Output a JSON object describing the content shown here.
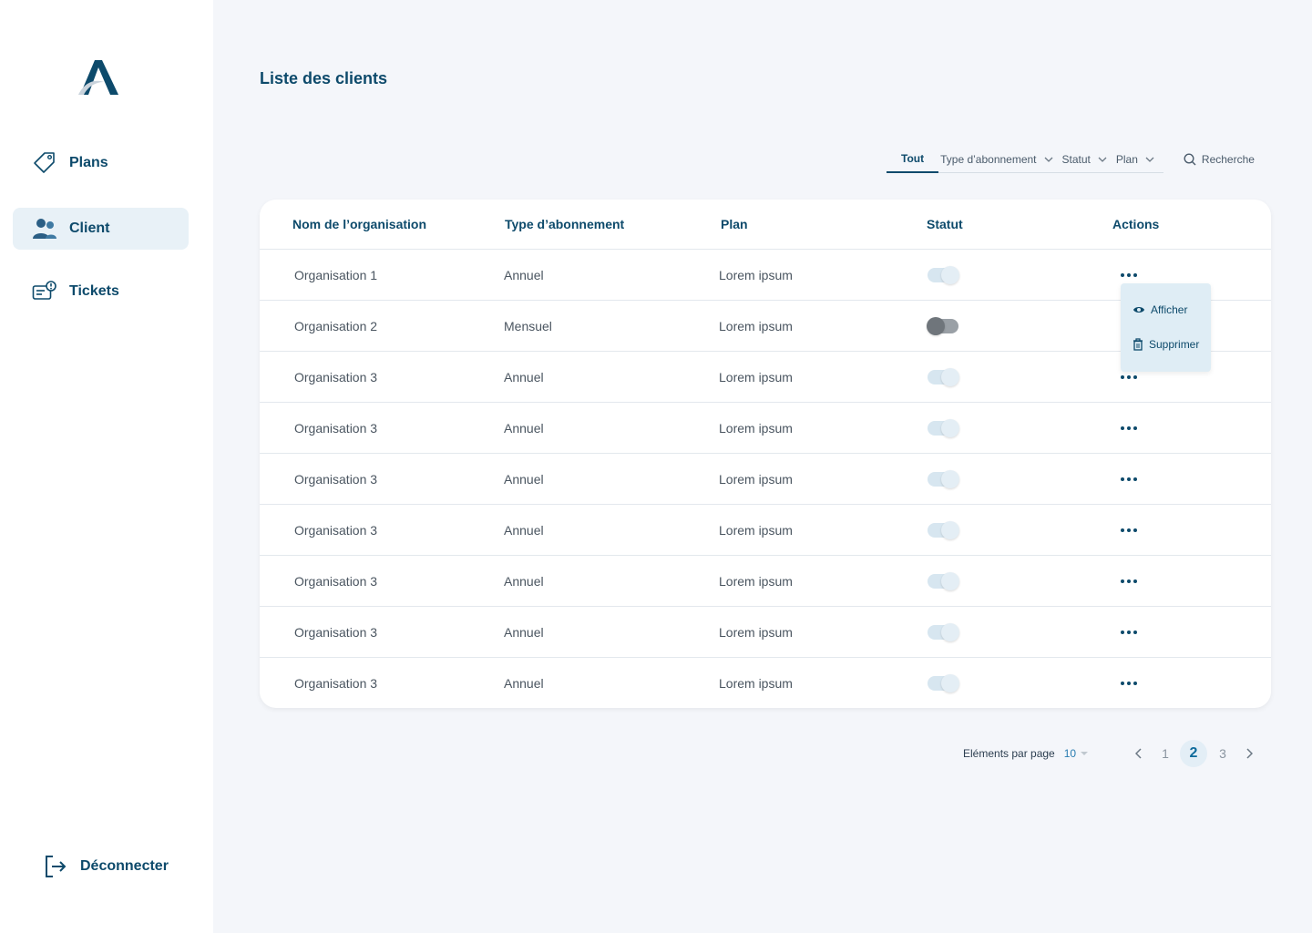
{
  "sidebar": {
    "items": [
      {
        "label": "Plans",
        "icon": "tag-icon"
      },
      {
        "label": "Client",
        "icon": "users-icon",
        "active": true
      },
      {
        "label": "Tickets",
        "icon": "ticket-icon"
      }
    ],
    "logout_label": "Déconnecter"
  },
  "page": {
    "title": "Liste des clients"
  },
  "filters": {
    "all_label": "Tout",
    "subscription_label": "Type d’abonnement",
    "status_label": "Statut",
    "plan_label": "Plan",
    "search_label": "Recherche"
  },
  "table": {
    "headers": [
      "Nom de l’organisation",
      "Type d’abonnement",
      "Plan",
      "Statut",
      "Actions"
    ],
    "rows": [
      {
        "name": "Organisation 1",
        "type": "Annuel",
        "plan": "Lorem ipsum",
        "status": true
      },
      {
        "name": "Organisation 2",
        "type": "Mensuel",
        "plan": "Lorem ipsum",
        "status": false
      },
      {
        "name": "Organisation 3",
        "type": "Annuel",
        "plan": "Lorem ipsum",
        "status": true
      },
      {
        "name": "Organisation 3",
        "type": "Annuel",
        "plan": "Lorem ipsum",
        "status": true
      },
      {
        "name": "Organisation 3",
        "type": "Annuel",
        "plan": "Lorem ipsum",
        "status": true
      },
      {
        "name": "Organisation 3",
        "type": "Annuel",
        "plan": "Lorem ipsum",
        "status": true
      },
      {
        "name": "Organisation 3",
        "type": "Annuel",
        "plan": "Lorem ipsum",
        "status": true
      },
      {
        "name": "Organisation 3",
        "type": "Annuel",
        "plan": "Lorem ipsum",
        "status": true
      },
      {
        "name": "Organisation 3",
        "type": "Annuel",
        "plan": "Lorem ipsum",
        "status": true
      }
    ]
  },
  "action_menu": {
    "view_label": "Afficher",
    "delete_label": "Supprimer"
  },
  "pagination": {
    "per_page_label": "Eléments par page",
    "per_page_value": "10",
    "pages": [
      "1",
      "2",
      "3"
    ],
    "current": "2"
  },
  "colors": {
    "primary": "#0d4a6b",
    "accent": "#2a7db1",
    "background": "#f4f6fa"
  }
}
